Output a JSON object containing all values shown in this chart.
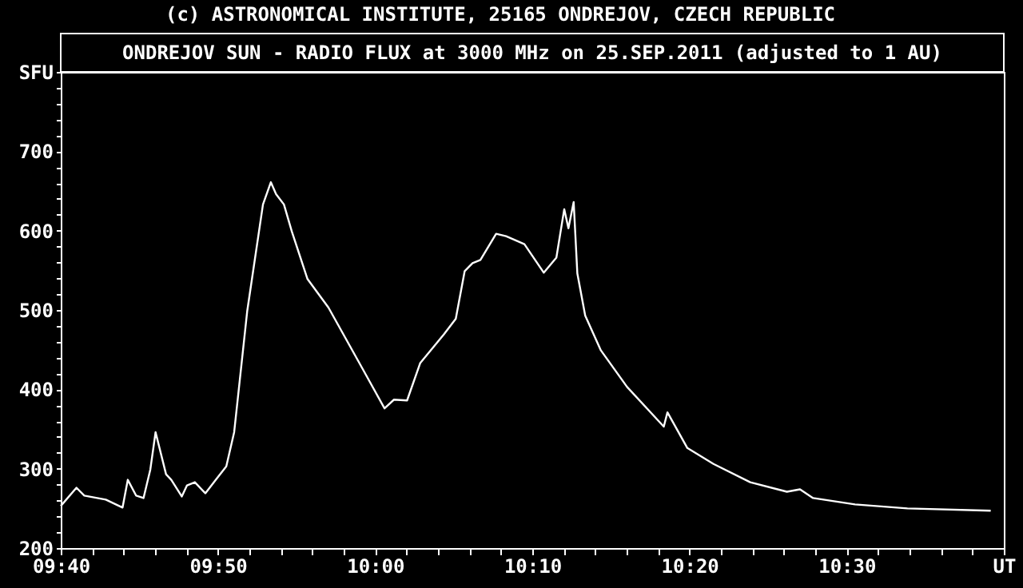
{
  "chart_data": {
    "type": "line",
    "title": "ONDREJOV SUN - RADIO FLUX at 3000 MHz on 25.SEP.2011 (adjusted to 1 AU)",
    "annotations": [
      "(c) ASTRONOMICAL INSTITUTE, 25165 ONDREJOV, CZECH REPUBLIC"
    ],
    "x": [
      "2011-09-25T09:40:00",
      "2011-09-25T09:41:00",
      "2011-09-25T09:41:30",
      "2011-09-25T09:42:52",
      "2011-09-25T09:43:56",
      "2011-09-25T09:44:16",
      "2011-09-25T09:44:48",
      "2011-09-25T09:45:16",
      "2011-09-25T09:45:42",
      "2011-09-25T09:46:02",
      "2011-09-25T09:46:42",
      "2011-09-25T09:47:02",
      "2011-09-25T09:47:42",
      "2011-09-25T09:48:02",
      "2011-09-25T09:48:32",
      "2011-09-25T09:49:12",
      "2011-09-25T09:49:52",
      "2011-09-25T09:50:32",
      "2011-09-25T09:51:02",
      "2011-09-25T09:51:52",
      "2011-09-25T09:52:52",
      "2011-09-25T09:53:22",
      "2011-09-25T09:53:42",
      "2011-09-25T09:54:12",
      "2011-09-25T09:54:42",
      "2011-09-25T09:55:42",
      "2011-09-25T09:57:02",
      "2011-09-25T09:59:12",
      "2011-09-25T10:00:36",
      "2011-09-25T10:01:12",
      "2011-09-25T10:02:02",
      "2011-09-25T10:02:52",
      "2011-09-25T10:04:22",
      "2011-09-25T10:05:08",
      "2011-09-25T10:05:42",
      "2011-09-25T10:06:12",
      "2011-09-25T10:06:42",
      "2011-09-25T10:07:42",
      "2011-09-25T10:08:20",
      "2011-09-25T10:09:30",
      "2011-09-25T10:10:44",
      "2011-09-25T10:11:32",
      "2011-09-25T10:12:02",
      "2011-09-25T10:12:18",
      "2011-09-25T10:12:38",
      "2011-09-25T10:12:52",
      "2011-09-25T10:13:22",
      "2011-09-25T10:14:22",
      "2011-09-25T10:16:02",
      "2011-09-25T10:18:22",
      "2011-09-25T10:18:36",
      "2011-09-25T10:19:52",
      "2011-09-25T10:21:32",
      "2011-09-25T10:23:52",
      "2011-09-25T10:26:12",
      "2011-09-25T10:27:02",
      "2011-09-25T10:27:52",
      "2011-09-25T10:30:32",
      "2011-09-25T10:33:52",
      "2011-09-25T10:39:10"
    ],
    "series": [
      {
        "color": "#ffffff",
        "values": [
          253,
          276,
          266,
          261,
          251,
          286,
          266,
          263,
          299,
          346,
          293,
          286,
          265,
          279,
          283,
          269,
          286,
          303,
          346,
          499,
          633,
          661,
          646,
          633,
          599,
          539,
          503,
          426,
          376,
          387,
          386,
          433,
          469,
          489,
          549,
          559,
          563,
          596,
          593,
          583,
          547,
          566,
          627,
          603,
          636,
          546,
          493,
          449,
          403,
          353,
          371,
          326,
          306,
          283,
          271,
          274,
          263,
          255,
          250,
          247
        ]
      }
    ],
    "xlim": [
      "2011-09-25T09:40",
      "2011-09-25T10:40"
    ],
    "xticks": [
      {
        "value": "2011-09-25T09:40",
        "label": "09:40"
      },
      {
        "value": "2011-09-25T09:42",
        "label": null
      },
      {
        "value": "2011-09-25T09:44",
        "label": null
      },
      {
        "value": "2011-09-25T09:46",
        "label": null
      },
      {
        "value": "2011-09-25T09:48",
        "label": null
      },
      {
        "value": "2011-09-25T09:50",
        "label": "09:50"
      },
      {
        "value": "2011-09-25T09:52",
        "label": null
      },
      {
        "value": "2011-09-25T09:54",
        "label": null
      },
      {
        "value": "2011-09-25T09:56",
        "label": null
      },
      {
        "value": "2011-09-25T09:58",
        "label": null
      },
      {
        "value": "2011-09-25T10:00",
        "label": "10:00"
      },
      {
        "value": "2011-09-25T10:02",
        "label": null
      },
      {
        "value": "2011-09-25T10:04",
        "label": null
      },
      {
        "value": "2011-09-25T10:06",
        "label": null
      },
      {
        "value": "2011-09-25T10:08",
        "label": null
      },
      {
        "value": "2011-09-25T10:10",
        "label": "10:10"
      },
      {
        "value": "2011-09-25T10:12",
        "label": null
      },
      {
        "value": "2011-09-25T10:14",
        "label": null
      },
      {
        "value": "2011-09-25T10:16",
        "label": null
      },
      {
        "value": "2011-09-25T10:18",
        "label": null
      },
      {
        "value": "2011-09-25T10:20",
        "label": "10:20"
      },
      {
        "value": "2011-09-25T10:22",
        "label": null
      },
      {
        "value": "2011-09-25T10:24",
        "label": null
      },
      {
        "value": "2011-09-25T10:26",
        "label": null
      },
      {
        "value": "2011-09-25T10:28",
        "label": null
      },
      {
        "value": "2011-09-25T10:30",
        "label": "10:30"
      },
      {
        "value": "2011-09-25T10:32",
        "label": null
      },
      {
        "value": "2011-09-25T10:34",
        "label": null
      },
      {
        "value": "2011-09-25T10:36",
        "label": null
      },
      {
        "value": "2011-09-25T10:38",
        "label": null
      },
      {
        "value": "2011-09-25T10:40",
        "label": "UT"
      }
    ],
    "ylim": [
      200,
      800
    ],
    "yticks": [
      {
        "value": 200,
        "label": "200"
      },
      {
        "value": 220,
        "label": null
      },
      {
        "value": 240,
        "label": null
      },
      {
        "value": 260,
        "label": null
      },
      {
        "value": 280,
        "label": null
      },
      {
        "value": 300,
        "label": "300"
      },
      {
        "value": 320,
        "label": null
      },
      {
        "value": 340,
        "label": null
      },
      {
        "value": 360,
        "label": null
      },
      {
        "value": 380,
        "label": null
      },
      {
        "value": 400,
        "label": "400"
      },
      {
        "value": 420,
        "label": null
      },
      {
        "value": 440,
        "label": null
      },
      {
        "value": 460,
        "label": null
      },
      {
        "value": 480,
        "label": null
      },
      {
        "value": 500,
        "label": "500"
      },
      {
        "value": 520,
        "label": null
      },
      {
        "value": 540,
        "label": null
      },
      {
        "value": 560,
        "label": null
      },
      {
        "value": 580,
        "label": null
      },
      {
        "value": 600,
        "label": "600"
      },
      {
        "value": 620,
        "label": null
      },
      {
        "value": 640,
        "label": null
      },
      {
        "value": 660,
        "label": null
      },
      {
        "value": 680,
        "label": null
      },
      {
        "value": 700,
        "label": "700"
      },
      {
        "value": 720,
        "label": null
      },
      {
        "value": 740,
        "label": null
      },
      {
        "value": 760,
        "label": null
      },
      {
        "value": 780,
        "label": null
      },
      {
        "value": 800,
        "label": "SFU"
      }
    ],
    "grid": false,
    "legend": false,
    "marker": "none",
    "line_style": "solid"
  }
}
